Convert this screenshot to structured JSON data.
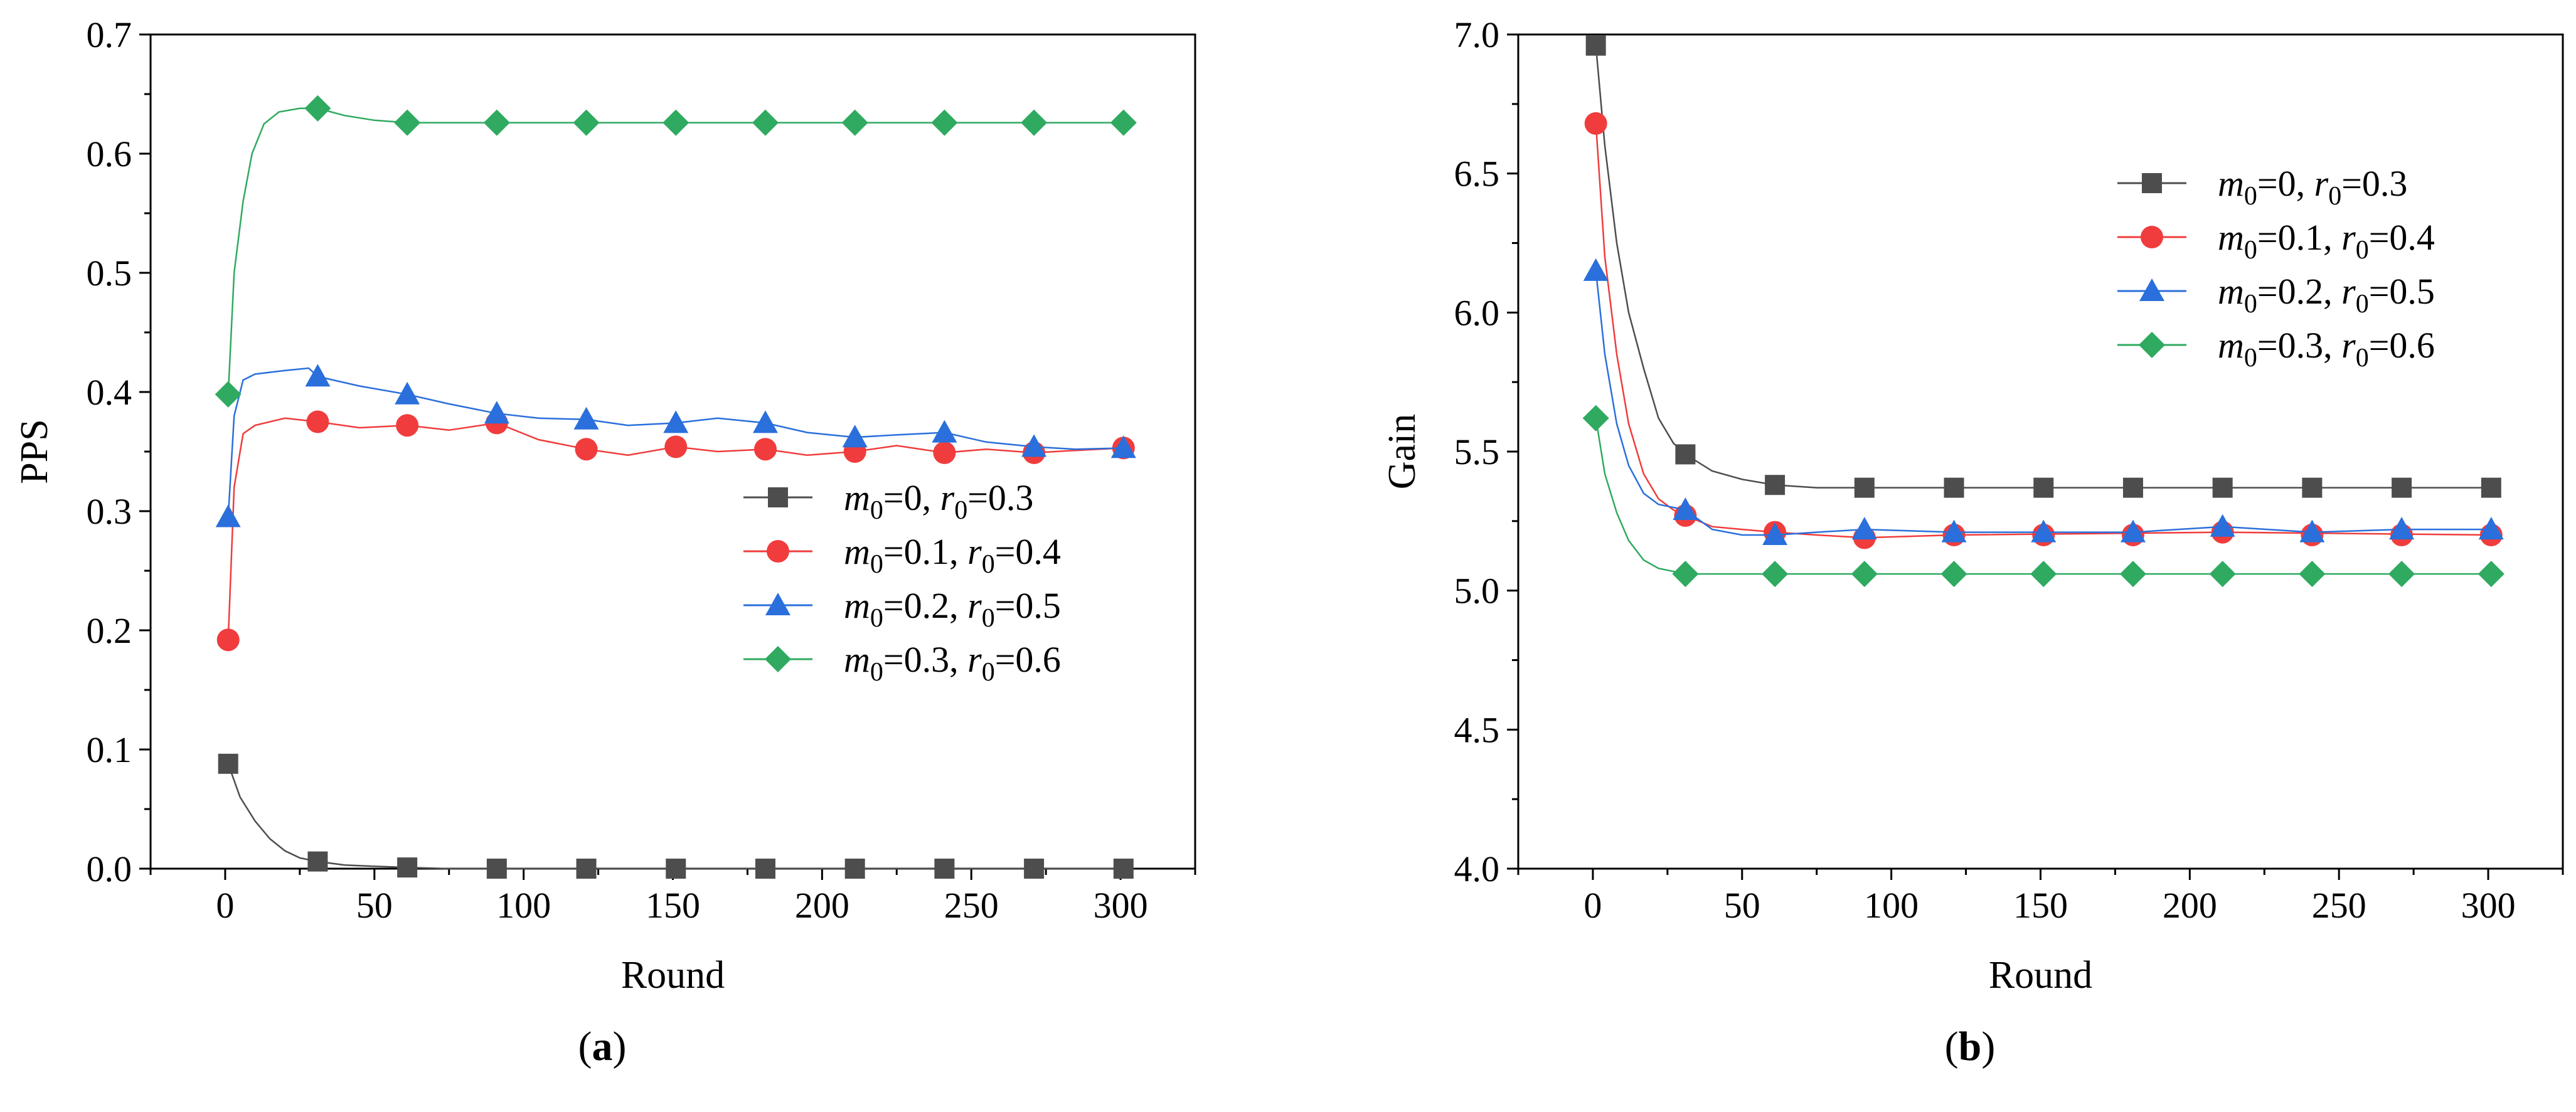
{
  "chart_data": [
    {
      "type": "line",
      "panel_label": "a",
      "title": "",
      "xlabel": "Round",
      "ylabel": "PPS",
      "xlim": [
        -25,
        325
      ],
      "ylim": [
        0.0,
        0.7
      ],
      "xticks": [
        0,
        50,
        100,
        150,
        200,
        250,
        300
      ],
      "yticks": [
        0.0,
        0.1,
        0.2,
        0.3,
        0.4,
        0.5,
        0.6,
        0.7
      ],
      "ytick_decimals": 1,
      "grid": false,
      "legend_position": "center-right",
      "series": [
        {
          "m_label": "m",
          "m_sub": "0",
          "m_value": "=0, ",
          "r_label": "r",
          "r_sub": "0",
          "r_value": "=0.3",
          "color": "#4d4d4d",
          "marker": "square",
          "markers": [
            [
              1,
              0.088
            ],
            [
              31,
              0.006
            ],
            [
              61,
              0.001
            ],
            [
              91,
              0.0
            ],
            [
              121,
              0.0
            ],
            [
              151,
              0.0
            ],
            [
              181,
              0.0
            ],
            [
              211,
              0.0
            ],
            [
              241,
              0.0
            ],
            [
              271,
              0.0
            ],
            [
              301,
              0.0
            ]
          ],
          "line": [
            [
              1,
              0.088
            ],
            [
              5,
              0.06
            ],
            [
              10,
              0.04
            ],
            [
              15,
              0.025
            ],
            [
              20,
              0.015
            ],
            [
              25,
              0.009
            ],
            [
              31,
              0.006
            ],
            [
              40,
              0.003
            ],
            [
              50,
              0.002
            ],
            [
              61,
              0.001
            ],
            [
              75,
              0.0
            ],
            [
              91,
              0.0
            ],
            [
              301,
              0.0
            ]
          ]
        },
        {
          "m_label": "m",
          "m_sub": "0",
          "m_value": "=0.1, ",
          "r_label": "r",
          "r_sub": "0",
          "r_value": "=0.4",
          "color": "#f03c3c",
          "marker": "circle",
          "markers": [
            [
              1,
              0.192
            ],
            [
              31,
              0.375
            ],
            [
              61,
              0.372
            ],
            [
              91,
              0.374
            ],
            [
              121,
              0.352
            ],
            [
              151,
              0.354
            ],
            [
              181,
              0.352
            ],
            [
              211,
              0.35
            ],
            [
              241,
              0.349
            ],
            [
              271,
              0.349
            ],
            [
              301,
              0.353
            ]
          ],
          "line": [
            [
              1,
              0.192
            ],
            [
              3,
              0.32
            ],
            [
              6,
              0.365
            ],
            [
              10,
              0.372
            ],
            [
              20,
              0.378
            ],
            [
              31,
              0.375
            ],
            [
              45,
              0.37
            ],
            [
              61,
              0.372
            ],
            [
              75,
              0.368
            ],
            [
              91,
              0.374
            ],
            [
              105,
              0.36
            ],
            [
              121,
              0.352
            ],
            [
              135,
              0.347
            ],
            [
              151,
              0.354
            ],
            [
              165,
              0.35
            ],
            [
              181,
              0.352
            ],
            [
              195,
              0.347
            ],
            [
              211,
              0.35
            ],
            [
              225,
              0.355
            ],
            [
              241,
              0.349
            ],
            [
              255,
              0.352
            ],
            [
              271,
              0.349
            ],
            [
              285,
              0.351
            ],
            [
              301,
              0.353
            ]
          ]
        },
        {
          "m_label": "m",
          "m_sub": "0",
          "m_value": "=0.2, ",
          "r_label": "r",
          "r_sub": "0",
          "r_value": "=0.5",
          "color": "#2a6fdb",
          "marker": "triangle",
          "markers": [
            [
              1,
              0.295
            ],
            [
              31,
              0.413
            ],
            [
              61,
              0.398
            ],
            [
              91,
              0.382
            ],
            [
              121,
              0.377
            ],
            [
              151,
              0.374
            ],
            [
              181,
              0.374
            ],
            [
              211,
              0.362
            ],
            [
              241,
              0.366
            ],
            [
              271,
              0.354
            ],
            [
              301,
              0.353
            ]
          ],
          "line": [
            [
              1,
              0.295
            ],
            [
              3,
              0.38
            ],
            [
              6,
              0.41
            ],
            [
              10,
              0.415
            ],
            [
              20,
              0.418
            ],
            [
              28,
              0.42
            ],
            [
              31,
              0.413
            ],
            [
              45,
              0.405
            ],
            [
              61,
              0.398
            ],
            [
              75,
              0.39
            ],
            [
              91,
              0.382
            ],
            [
              105,
              0.378
            ],
            [
              121,
              0.377
            ],
            [
              135,
              0.372
            ],
            [
              151,
              0.374
            ],
            [
              165,
              0.378
            ],
            [
              181,
              0.374
            ],
            [
              195,
              0.366
            ],
            [
              211,
              0.362
            ],
            [
              225,
              0.364
            ],
            [
              241,
              0.366
            ],
            [
              255,
              0.358
            ],
            [
              271,
              0.354
            ],
            [
              285,
              0.352
            ],
            [
              301,
              0.353
            ]
          ]
        },
        {
          "m_label": "m",
          "m_sub": "0",
          "m_value": "=0.3, ",
          "r_label": "r",
          "r_sub": "0",
          "r_value": "=0.6",
          "color": "#2faa60",
          "marker": "diamond",
          "markers": [
            [
              1,
              0.398
            ],
            [
              31,
              0.638
            ],
            [
              61,
              0.626
            ],
            [
              91,
              0.626
            ],
            [
              121,
              0.626
            ],
            [
              151,
              0.626
            ],
            [
              181,
              0.626
            ],
            [
              211,
              0.626
            ],
            [
              241,
              0.626
            ],
            [
              271,
              0.626
            ],
            [
              301,
              0.626
            ]
          ],
          "line": [
            [
              1,
              0.398
            ],
            [
              3,
              0.5
            ],
            [
              6,
              0.56
            ],
            [
              9,
              0.6
            ],
            [
              13,
              0.625
            ],
            [
              18,
              0.635
            ],
            [
              25,
              0.638
            ],
            [
              31,
              0.638
            ],
            [
              40,
              0.632
            ],
            [
              50,
              0.628
            ],
            [
              61,
              0.626
            ],
            [
              301,
              0.626
            ]
          ]
        }
      ]
    },
    {
      "type": "line",
      "panel_label": "b",
      "title": "",
      "xlabel": "Round",
      "ylabel": "Gain",
      "xlim": [
        -25,
        325
      ],
      "ylim": [
        4.0,
        7.0
      ],
      "xticks": [
        0,
        50,
        100,
        150,
        200,
        250,
        300
      ],
      "yticks": [
        4.0,
        4.5,
        5.0,
        5.5,
        6.0,
        6.5,
        7.0
      ],
      "ytick_decimals": 1,
      "grid": false,
      "legend_position": "top-right",
      "series": [
        {
          "m_label": "m",
          "m_sub": "0",
          "m_value": "=0, ",
          "r_label": "r",
          "r_sub": "0",
          "r_value": "=0.3",
          "color": "#4d4d4d",
          "marker": "square",
          "markers": [
            [
              1,
              6.96
            ],
            [
              31,
              5.49
            ],
            [
              61,
              5.38
            ],
            [
              91,
              5.37
            ],
            [
              121,
              5.37
            ],
            [
              151,
              5.37
            ],
            [
              181,
              5.37
            ],
            [
              211,
              5.37
            ],
            [
              241,
              5.37
            ],
            [
              271,
              5.37
            ],
            [
              301,
              5.37
            ]
          ],
          "line": [
            [
              1,
              6.96
            ],
            [
              4,
              6.6
            ],
            [
              8,
              6.25
            ],
            [
              12,
              6.0
            ],
            [
              17,
              5.8
            ],
            [
              22,
              5.62
            ],
            [
              27,
              5.53
            ],
            [
              31,
              5.49
            ],
            [
              40,
              5.43
            ],
            [
              50,
              5.4
            ],
            [
              61,
              5.38
            ],
            [
              75,
              5.37
            ],
            [
              301,
              5.37
            ]
          ]
        },
        {
          "m_label": "m",
          "m_sub": "0",
          "m_value": "=0.1, ",
          "r_label": "r",
          "r_sub": "0",
          "r_value": "=0.4",
          "color": "#f03c3c",
          "marker": "circle",
          "markers": [
            [
              1,
              6.68
            ],
            [
              31,
              5.27
            ],
            [
              61,
              5.21
            ],
            [
              91,
              5.19
            ],
            [
              121,
              5.2
            ],
            [
              151,
              5.2
            ],
            [
              181,
              5.2
            ],
            [
              211,
              5.21
            ],
            [
              241,
              5.2
            ],
            [
              271,
              5.2
            ],
            [
              301,
              5.2
            ]
          ],
          "line": [
            [
              1,
              6.68
            ],
            [
              4,
              6.2
            ],
            [
              8,
              5.85
            ],
            [
              12,
              5.6
            ],
            [
              17,
              5.42
            ],
            [
              22,
              5.33
            ],
            [
              27,
              5.29
            ],
            [
              31,
              5.27
            ],
            [
              40,
              5.23
            ],
            [
              50,
              5.22
            ],
            [
              61,
              5.21
            ],
            [
              75,
              5.2
            ],
            [
              91,
              5.19
            ],
            [
              121,
              5.2
            ],
            [
              211,
              5.21
            ],
            [
              301,
              5.2
            ]
          ]
        },
        {
          "m_label": "m",
          "m_sub": "0",
          "m_value": "=0.2, ",
          "r_label": "r",
          "r_sub": "0",
          "r_value": "=0.5",
          "color": "#2a6fdb",
          "marker": "triangle",
          "markers": [
            [
              1,
              6.15
            ],
            [
              31,
              5.29
            ],
            [
              61,
              5.2
            ],
            [
              91,
              5.22
            ],
            [
              121,
              5.21
            ],
            [
              151,
              5.21
            ],
            [
              181,
              5.21
            ],
            [
              211,
              5.23
            ],
            [
              241,
              5.21
            ],
            [
              271,
              5.22
            ],
            [
              301,
              5.22
            ]
          ],
          "line": [
            [
              1,
              6.15
            ],
            [
              4,
              5.85
            ],
            [
              8,
              5.6
            ],
            [
              12,
              5.45
            ],
            [
              17,
              5.35
            ],
            [
              22,
              5.31
            ],
            [
              31,
              5.29
            ],
            [
              40,
              5.22
            ],
            [
              50,
              5.2
            ],
            [
              61,
              5.2
            ],
            [
              75,
              5.21
            ],
            [
              91,
              5.22
            ],
            [
              121,
              5.21
            ],
            [
              181,
              5.21
            ],
            [
              211,
              5.23
            ],
            [
              241,
              5.21
            ],
            [
              271,
              5.22
            ],
            [
              301,
              5.22
            ]
          ]
        },
        {
          "m_label": "m",
          "m_sub": "0",
          "m_value": "=0.3, ",
          "r_label": "r",
          "r_sub": "0",
          "r_value": "=0.6",
          "color": "#2faa60",
          "marker": "diamond",
          "markers": [
            [
              1,
              5.62
            ],
            [
              31,
              5.06
            ],
            [
              61,
              5.06
            ],
            [
              91,
              5.06
            ],
            [
              121,
              5.06
            ],
            [
              151,
              5.06
            ],
            [
              181,
              5.06
            ],
            [
              211,
              5.06
            ],
            [
              241,
              5.06
            ],
            [
              271,
              5.06
            ],
            [
              301,
              5.06
            ]
          ],
          "line": [
            [
              1,
              5.62
            ],
            [
              4,
              5.42
            ],
            [
              8,
              5.28
            ],
            [
              12,
              5.18
            ],
            [
              17,
              5.11
            ],
            [
              22,
              5.08
            ],
            [
              31,
              5.06
            ],
            [
              301,
              5.06
            ]
          ]
        }
      ]
    }
  ]
}
